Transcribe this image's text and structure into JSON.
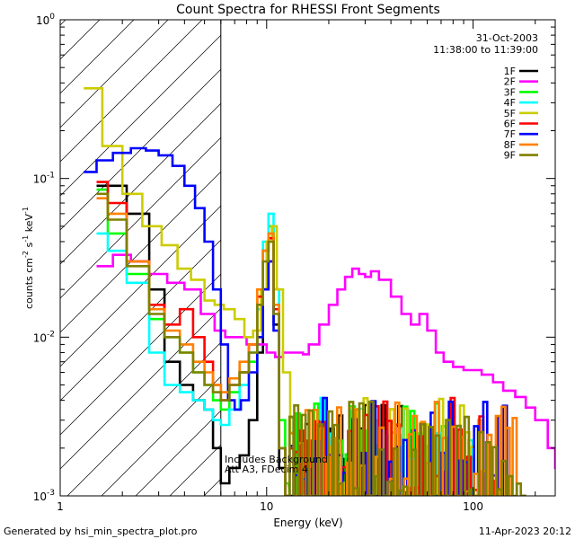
{
  "chart_data": {
    "type": "line",
    "title": "Count Spectra for RHESSI Front Segments",
    "xlabel": "Energy (keV)",
    "ylabel_parts": [
      "counts cm",
      "-2",
      " s",
      "-1",
      " keV",
      "-1"
    ],
    "xscale": "log",
    "yscale": "log",
    "xlim": [
      1,
      250
    ],
    "ylim": [
      0.001,
      1
    ],
    "x_ticks": [
      {
        "value": 1,
        "label": "1"
      },
      {
        "value": 10,
        "label": "10"
      },
      {
        "value": 100,
        "label": "100"
      }
    ],
    "y_ticks": [
      {
        "value": 0.001,
        "mantissa": "10",
        "exp": "-3"
      },
      {
        "value": 0.01,
        "mantissa": "10",
        "exp": "-2"
      },
      {
        "value": 0.1,
        "mantissa": "10",
        "exp": "-1"
      },
      {
        "value": 1,
        "mantissa": "10",
        "exp": "0"
      }
    ],
    "shaded_region": {
      "x_range": [
        1,
        6
      ],
      "pattern": "diagonal-hatch"
    },
    "legend_header": [
      "31-Oct-2003",
      "11:38:00 to 11:39:00"
    ],
    "legend_position": "top-right",
    "annotation": [
      "Includes Background",
      "Att A3, FDecim 4"
    ],
    "series": [
      {
        "name": "1F",
        "color": "#000000",
        "x": [
          1.5,
          2.1,
          2.7,
          3.2,
          3.8,
          4.4,
          5.0,
          5.5,
          6.0,
          6.6,
          7.4,
          8.2,
          9.0,
          9.6,
          10.2,
          10.8,
          11.5,
          12.3
        ],
        "y": [
          0.09,
          0.06,
          0.02,
          0.007,
          0.005,
          0.004,
          0.0035,
          0.002,
          0.0012,
          0.0015,
          0.0018,
          0.003,
          0.008,
          0.02,
          0.03,
          0.012,
          0.0015,
          0.001
        ]
      },
      {
        "name": "2F",
        "color": "#ff00ff",
        "x": [
          1.5,
          1.8,
          2.2,
          2.7,
          3.3,
          4.0,
          4.8,
          5.6,
          6.3,
          7.0,
          8.0,
          9.0,
          10.0,
          11.0,
          12.0,
          13.5,
          15.0,
          16.0,
          18.0,
          20.0,
          22.0,
          24.0,
          26.0,
          28.0,
          30.0,
          32.0,
          35.0,
          40.0,
          45.0,
          50.0,
          55.0,
          60.0,
          66.0,
          72.0,
          80.0,
          90.0,
          100.0,
          110.0,
          125.0,
          140.0,
          160.0,
          180.0,
          200.0,
          230.0,
          250.0
        ],
        "y": [
          0.028,
          0.033,
          0.03,
          0.025,
          0.022,
          0.02,
          0.014,
          0.011,
          0.01,
          0.01,
          0.009,
          0.009,
          0.008,
          0.0075,
          0.008,
          0.008,
          0.0078,
          0.009,
          0.012,
          0.016,
          0.02,
          0.024,
          0.027,
          0.025,
          0.024,
          0.026,
          0.023,
          0.018,
          0.014,
          0.012,
          0.014,
          0.011,
          0.008,
          0.007,
          0.0065,
          0.0062,
          0.0062,
          0.0058,
          0.0052,
          0.0046,
          0.0042,
          0.0036,
          0.003,
          0.002,
          0.0015
        ]
      },
      {
        "name": "3F",
        "color": "#00ff00",
        "x": [
          1.5,
          1.7,
          2.1,
          2.7,
          3.2,
          3.8,
          4.4,
          5.0,
          5.5,
          6.0,
          6.6,
          7.4,
          8.2,
          9.0,
          9.6,
          10.2,
          10.8,
          11.5,
          12.3
        ],
        "y": [
          0.085,
          0.045,
          0.025,
          0.013,
          0.01,
          0.008,
          0.006,
          0.005,
          0.004,
          0.0035,
          0.0045,
          0.006,
          0.007,
          0.015,
          0.035,
          0.05,
          0.02,
          0.003,
          0.0012
        ]
      },
      {
        "name": "4F",
        "color": "#00ffff",
        "x": [
          1.5,
          1.7,
          2.1,
          2.7,
          3.2,
          3.8,
          4.4,
          5.0,
          5.5,
          6.0,
          6.6,
          7.4,
          8.2,
          9.0,
          9.6,
          10.2,
          10.8,
          11.5,
          12.3
        ],
        "y": [
          0.045,
          0.035,
          0.022,
          0.008,
          0.005,
          0.0045,
          0.004,
          0.0035,
          0.003,
          0.0028,
          0.0035,
          0.005,
          0.008,
          0.015,
          0.04,
          0.06,
          0.02,
          0.002,
          0.001
        ]
      },
      {
        "name": "5F",
        "color": "#cccc00",
        "x": [
          1.3,
          1.6,
          2.0,
          2.5,
          3.1,
          3.7,
          4.3,
          5.0,
          5.6,
          6.2,
          7.0,
          7.8,
          8.6,
          9.4,
          10.0,
          10.6,
          11.2,
          12.0,
          13.0
        ],
        "y": [
          0.37,
          0.16,
          0.08,
          0.05,
          0.038,
          0.027,
          0.023,
          0.017,
          0.016,
          0.015,
          0.013,
          0.01,
          0.011,
          0.02,
          0.04,
          0.05,
          0.02,
          0.006,
          0.0025
        ]
      },
      {
        "name": "6F",
        "color": "#ff0000",
        "x": [
          1.5,
          1.7,
          2.1,
          2.7,
          3.2,
          3.8,
          4.4,
          5.0,
          5.5,
          6.0,
          6.6,
          7.4,
          8.2,
          9.0,
          9.6,
          10.2,
          10.8,
          11.5,
          12.3
        ],
        "y": [
          0.095,
          0.07,
          0.03,
          0.016,
          0.012,
          0.015,
          0.01,
          0.007,
          0.005,
          0.004,
          0.005,
          0.006,
          0.009,
          0.018,
          0.035,
          0.042,
          0.015,
          0.002,
          0.001
        ]
      },
      {
        "name": "7F",
        "color": "#0000ff",
        "x": [
          1.3,
          1.5,
          1.8,
          2.2,
          2.6,
          3.0,
          3.5,
          4.0,
          4.5,
          5.0,
          5.5,
          6.0,
          6.5,
          7.0,
          7.5,
          8.2,
          9.0,
          9.6,
          10.2,
          10.8,
          11.5,
          12.3
        ],
        "y": [
          0.11,
          0.13,
          0.145,
          0.155,
          0.15,
          0.14,
          0.12,
          0.09,
          0.065,
          0.04,
          0.02,
          0.009,
          0.004,
          0.0035,
          0.004,
          0.006,
          0.01,
          0.02,
          0.03,
          0.011,
          0.002,
          0.001
        ]
      },
      {
        "name": "8F",
        "color": "#ff8000",
        "x": [
          1.5,
          1.7,
          2.1,
          2.7,
          3.2,
          3.8,
          4.4,
          5.0,
          5.5,
          6.0,
          6.6,
          7.4,
          8.2,
          9.0,
          9.6,
          10.2,
          10.8,
          11.5,
          12.3
        ],
        "y": [
          0.075,
          0.06,
          0.03,
          0.015,
          0.011,
          0.009,
          0.007,
          0.006,
          0.005,
          0.0045,
          0.0055,
          0.007,
          0.009,
          0.02,
          0.035,
          0.045,
          0.016,
          0.002,
          0.001
        ]
      },
      {
        "name": "9F",
        "color": "#808000",
        "x": [
          1.5,
          1.7,
          2.1,
          2.7,
          3.2,
          3.8,
          4.4,
          5.0,
          5.5,
          6.0,
          6.6,
          7.4,
          8.2,
          9.0,
          9.6,
          10.2,
          10.8,
          11.5,
          12.3
        ],
        "y": [
          0.08,
          0.055,
          0.028,
          0.014,
          0.01,
          0.008,
          0.006,
          0.005,
          0.0045,
          0.004,
          0.005,
          0.006,
          0.008,
          0.016,
          0.03,
          0.04,
          0.014,
          0.002,
          0.001
        ]
      }
    ],
    "noise_tail": {
      "x_range": [
        12,
        200
      ],
      "note": "dense noisy high-energy tails near detection floor"
    }
  },
  "footer": {
    "left": "Generated by hsi_min_spectra_plot.pro",
    "right": "11-Apr-2023 20:12"
  }
}
